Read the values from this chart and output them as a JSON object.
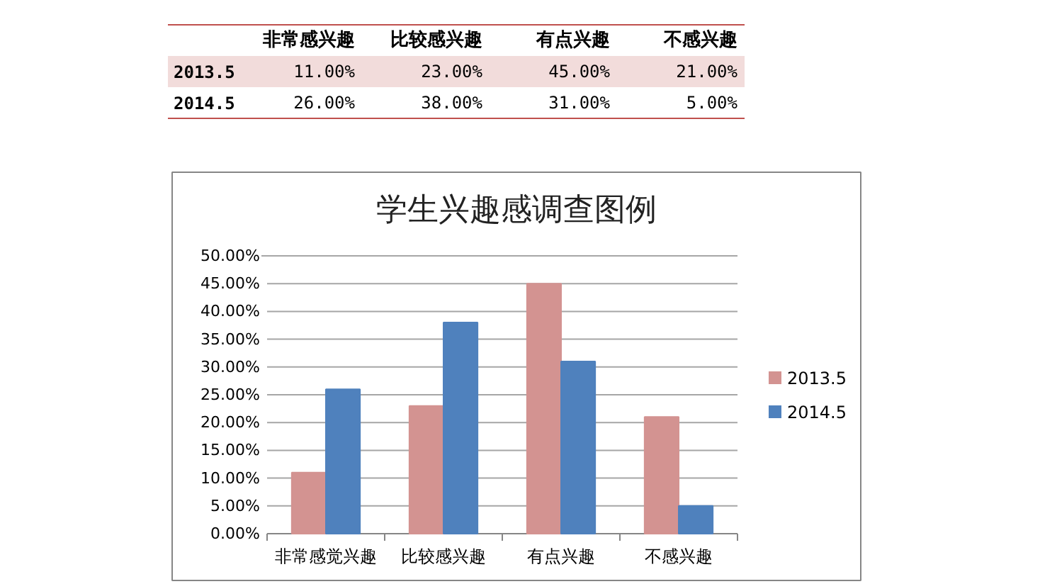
{
  "chart_data": {
    "type": "bar",
    "title": "学生兴趣感调查图例",
    "categories": [
      "非常感觉兴趣",
      "比较感兴趣",
      "有点兴趣",
      "不感兴趣"
    ],
    "series": [
      {
        "name": "2013.5",
        "color": "#d39391",
        "values": [
          11,
          23,
          45,
          21
        ],
        "value_labels": [
          "11.00%",
          "23.00%",
          "45.00%",
          "21.00%"
        ]
      },
      {
        "name": "2014.5",
        "color": "#4f81bd",
        "values": [
          26,
          38,
          31,
          5
        ],
        "value_labels": [
          "26.00%",
          "38.00%",
          "31.00%",
          "5.00%"
        ]
      }
    ],
    "ylim": [
      0,
      50
    ],
    "yticks": [
      {
        "value": 0,
        "label": "0.00%"
      },
      {
        "value": 5,
        "label": "5.00%"
      },
      {
        "value": 10,
        "label": "10.00%"
      },
      {
        "value": 15,
        "label": "15.00%"
      },
      {
        "value": 20,
        "label": "20.00%"
      },
      {
        "value": 25,
        "label": "25.00%"
      },
      {
        "value": 30,
        "label": "30.00%"
      },
      {
        "value": 35,
        "label": "35.00%"
      },
      {
        "value": 40,
        "label": "40.00%"
      },
      {
        "value": 45,
        "label": "45.00%"
      },
      {
        "value": 50,
        "label": "50.00%"
      }
    ],
    "grid": "y",
    "legend": "right",
    "annotations": [
      "非常感兴趣",
      "比较感兴趣",
      "有点兴趣",
      "不感兴趣"
    ]
  }
}
